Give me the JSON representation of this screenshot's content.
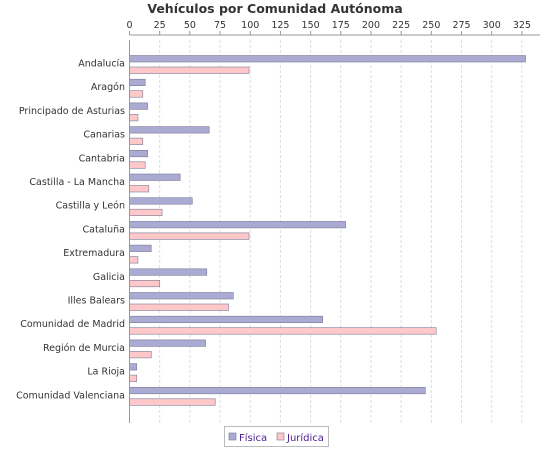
{
  "chart_data": {
    "type": "bar",
    "orientation": "horizontal",
    "title": "Vehículos por Comunidad Autónoma",
    "xlabel": "",
    "ylabel": "",
    "xlim": [
      0,
      340
    ],
    "xticks": [
      0,
      25,
      50,
      75,
      100,
      125,
      150,
      175,
      200,
      225,
      250,
      275,
      300,
      325
    ],
    "grid": "vertical-dashed",
    "legend_position": "bottom",
    "categories": [
      "Andalucía",
      "Aragón",
      "Principado de Asturias",
      "Canarias",
      "Cantabria",
      "Castilla - La Mancha",
      "Castilla y León",
      "Cataluña",
      "Extremadura",
      "Galicia",
      "Illes Balears",
      "Comunidad de Madrid",
      "Región de Murcia",
      "La Rioja",
      "Comunidad Valenciana"
    ],
    "series": [
      {
        "name": "Física",
        "color": "#aaaad2",
        "values": [
          328,
          13,
          15,
          66,
          15,
          42,
          52,
          179,
          18,
          64,
          86,
          160,
          63,
          6,
          245
        ]
      },
      {
        "name": "Jurídica",
        "color": "#ffc8c8",
        "values": [
          99,
          11,
          7,
          11,
          13,
          16,
          27,
          99,
          7,
          25,
          82,
          254,
          18,
          6,
          71
        ]
      }
    ]
  },
  "colors": {
    "bar_outline": "#7a7a9a",
    "axis": "#999999",
    "grid": "#dddddd"
  }
}
